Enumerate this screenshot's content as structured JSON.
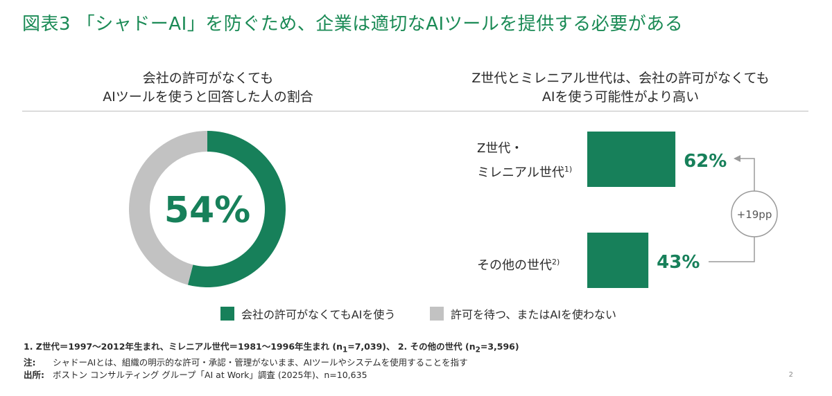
{
  "title": "図表3 「シャドーAI」を防ぐため、企業は適切なAIツールを提供する必要がある",
  "left_panel": {
    "title_line1": "会社の許可がなくても",
    "title_line2": "AIツールを使うと回答した人の割合"
  },
  "right_panel": {
    "title_line1": "Z世代とミレニアル世代は、会社の許可がなくても",
    "title_line2": "AIを使う可能性がより高い"
  },
  "colors": {
    "green": "#17805a",
    "gray": "#c2c2c2",
    "title_green": "#1a8a55",
    "arrow_gray": "#9a9a9a"
  },
  "chart_data": [
    {
      "type": "pie",
      "variant": "donut",
      "categories": [
        "会社の許可がなくてもAIを使う",
        "許可を待つ、またはAIを使わない"
      ],
      "values": [
        54,
        46
      ],
      "center_label": "54%"
    },
    {
      "type": "bar",
      "orientation": "horizontal",
      "categories": [
        "Z世代・ミレニアル世代",
        "その他の世代"
      ],
      "category_lines": [
        [
          "Z世代・",
          "ミレニアル世代"
        ],
        [
          "その他の世代"
        ]
      ],
      "category_superscripts": [
        "1)",
        "2)"
      ],
      "values": [
        62,
        43
      ],
      "value_labels": [
        "62%",
        "43%"
      ],
      "difference_label": "+19pp"
    }
  ],
  "legend": {
    "item1": "会社の許可がなくてもAIを使う",
    "item2": "許可を待つ、またはAIを使わない"
  },
  "notes": {
    "line1_a": "1. Z世代＝1997～2012年生まれ、ミレニアル世代＝1981～1996年生まれ (n",
    "line1_sub1": "1",
    "line1_b": "=7,039)、 2. その他の世代 (n",
    "line1_sub2": "2",
    "line1_c": "=3,596)",
    "note_label": "注:",
    "note_text": "シャドーAIとは、組織の明示的な許可・承認・管理がないまま、AIツールやシステムを使用することを指す",
    "source_label": "出所:",
    "source_text": "ボストン コンサルティング グループ「AI at Work」調査 (2025年)、n=10,635"
  },
  "page_number": "2"
}
